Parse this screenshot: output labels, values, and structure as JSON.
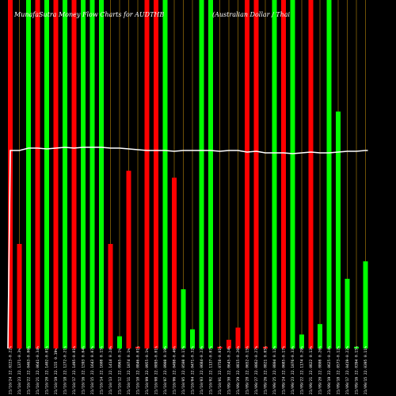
{
  "title_left": "MunafaSutra Money Flow Charts for AUDTHB",
  "title_right": "(Australian Dollar / Thai",
  "colors": {
    "background": "#000000",
    "up": "#00ff00",
    "down": "#ff0000",
    "gridline": "#b8860b",
    "price_line": "#ffffff",
    "label": "#ffffff"
  },
  "chart_data": {
    "type": "bar",
    "title": "MunafaSutra Money Flow Charts for AUDTHB (Australian Dollar / Thai",
    "ylim": [
      0,
      100
    ],
    "categories": [
      "21/10/24 22.0223-0.22%",
      "21/10/23 22.1371-0.3%",
      "21/10/22 22.0463-0.06%",
      "21/10/21 22.0641-0.34%",
      "21/10/20 22.1402-0.01%",
      "21/10/19 22.155 0.19%",
      "21/10/18 22.1272-0.21%",
      "21/10/17 22.1495-0.01%",
      "21/10/16 22.1593 0.04%",
      "21/10/15 22.1643 0.07%",
      "21/10/14 22.1608 0.15%",
      "21/10/13 22.1414 0.24%",
      "21/10/12 22.0965-0.1%",
      "21/10/11 22.1074 0.1%",
      "21/10/10 22.0846-0.01%",
      "21/10/09 22.0955-0.1%",
      "21/10/08 22.0895-0.01%",
      "21/10/07 22.0908 0.19%",
      "21/10/06 22.0498-0.46%",
      "21/10/05 22.0508 0.17%",
      "21/10/04 22.0471-0.32%",
      "21/10/03 22.0684-0.23%",
      "21/10/02 22.1137-0.07%",
      "21/10/01 22.0758-0.01%",
      "21/09/30 22.0645-0.24%",
      "21/09/29 22.0815-0.26%",
      "21/09/28 22.0652-0.15%",
      "21/09/27 22.0862-0.27%",
      "21/09/26 22.0821 0.05%",
      "21/09/25 22.0804 0.12%",
      "21/09/24 22.0685-0.17%",
      "21/09/23 22.1076-0.33%",
      "21/09/22 22.1174 0.29%",
      "21/09/21 22.0822 0.13%",
      "21/09/20 22.0808 0.26%",
      "21/09/19 22.0625-0.24%",
      "21/09/18 22.0573-0.12%",
      "21/09/17 22.0419-0.22%",
      "21/09/16 22.0394 0.15%",
      "21/09/15 22.0395 0.11%"
    ],
    "values": [
      100,
      30,
      100,
      100,
      100,
      100,
      100,
      100,
      100,
      100,
      100,
      30,
      3.5,
      51,
      0.5,
      100,
      100,
      100,
      49,
      17,
      5.5,
      100,
      100,
      0.5,
      2.5,
      6,
      100,
      100,
      0.5,
      100,
      100,
      100,
      4,
      100,
      7,
      100,
      68,
      20,
      0.5,
      25
    ],
    "directions": [
      "down",
      "down",
      "up",
      "down",
      "up",
      "down",
      "up",
      "down",
      "up",
      "up",
      "up",
      "down",
      "up",
      "down",
      "down",
      "down",
      "down",
      "up",
      "down",
      "up",
      "up",
      "up",
      "up",
      "down",
      "down",
      "down",
      "down",
      "down",
      "down",
      "up",
      "down",
      "up",
      "up",
      "down",
      "up",
      "up",
      "up",
      "up",
      "up",
      "up"
    ],
    "price": [
      190,
      190,
      187,
      187,
      188,
      187,
      186,
      187,
      186,
      186,
      186,
      187,
      187,
      188,
      189,
      190,
      190,
      190,
      191,
      190,
      190,
      190,
      190,
      191,
      190,
      190,
      192,
      191,
      193,
      193,
      193,
      194,
      193,
      192,
      193,
      193,
      192,
      191,
      191,
      190
    ]
  }
}
